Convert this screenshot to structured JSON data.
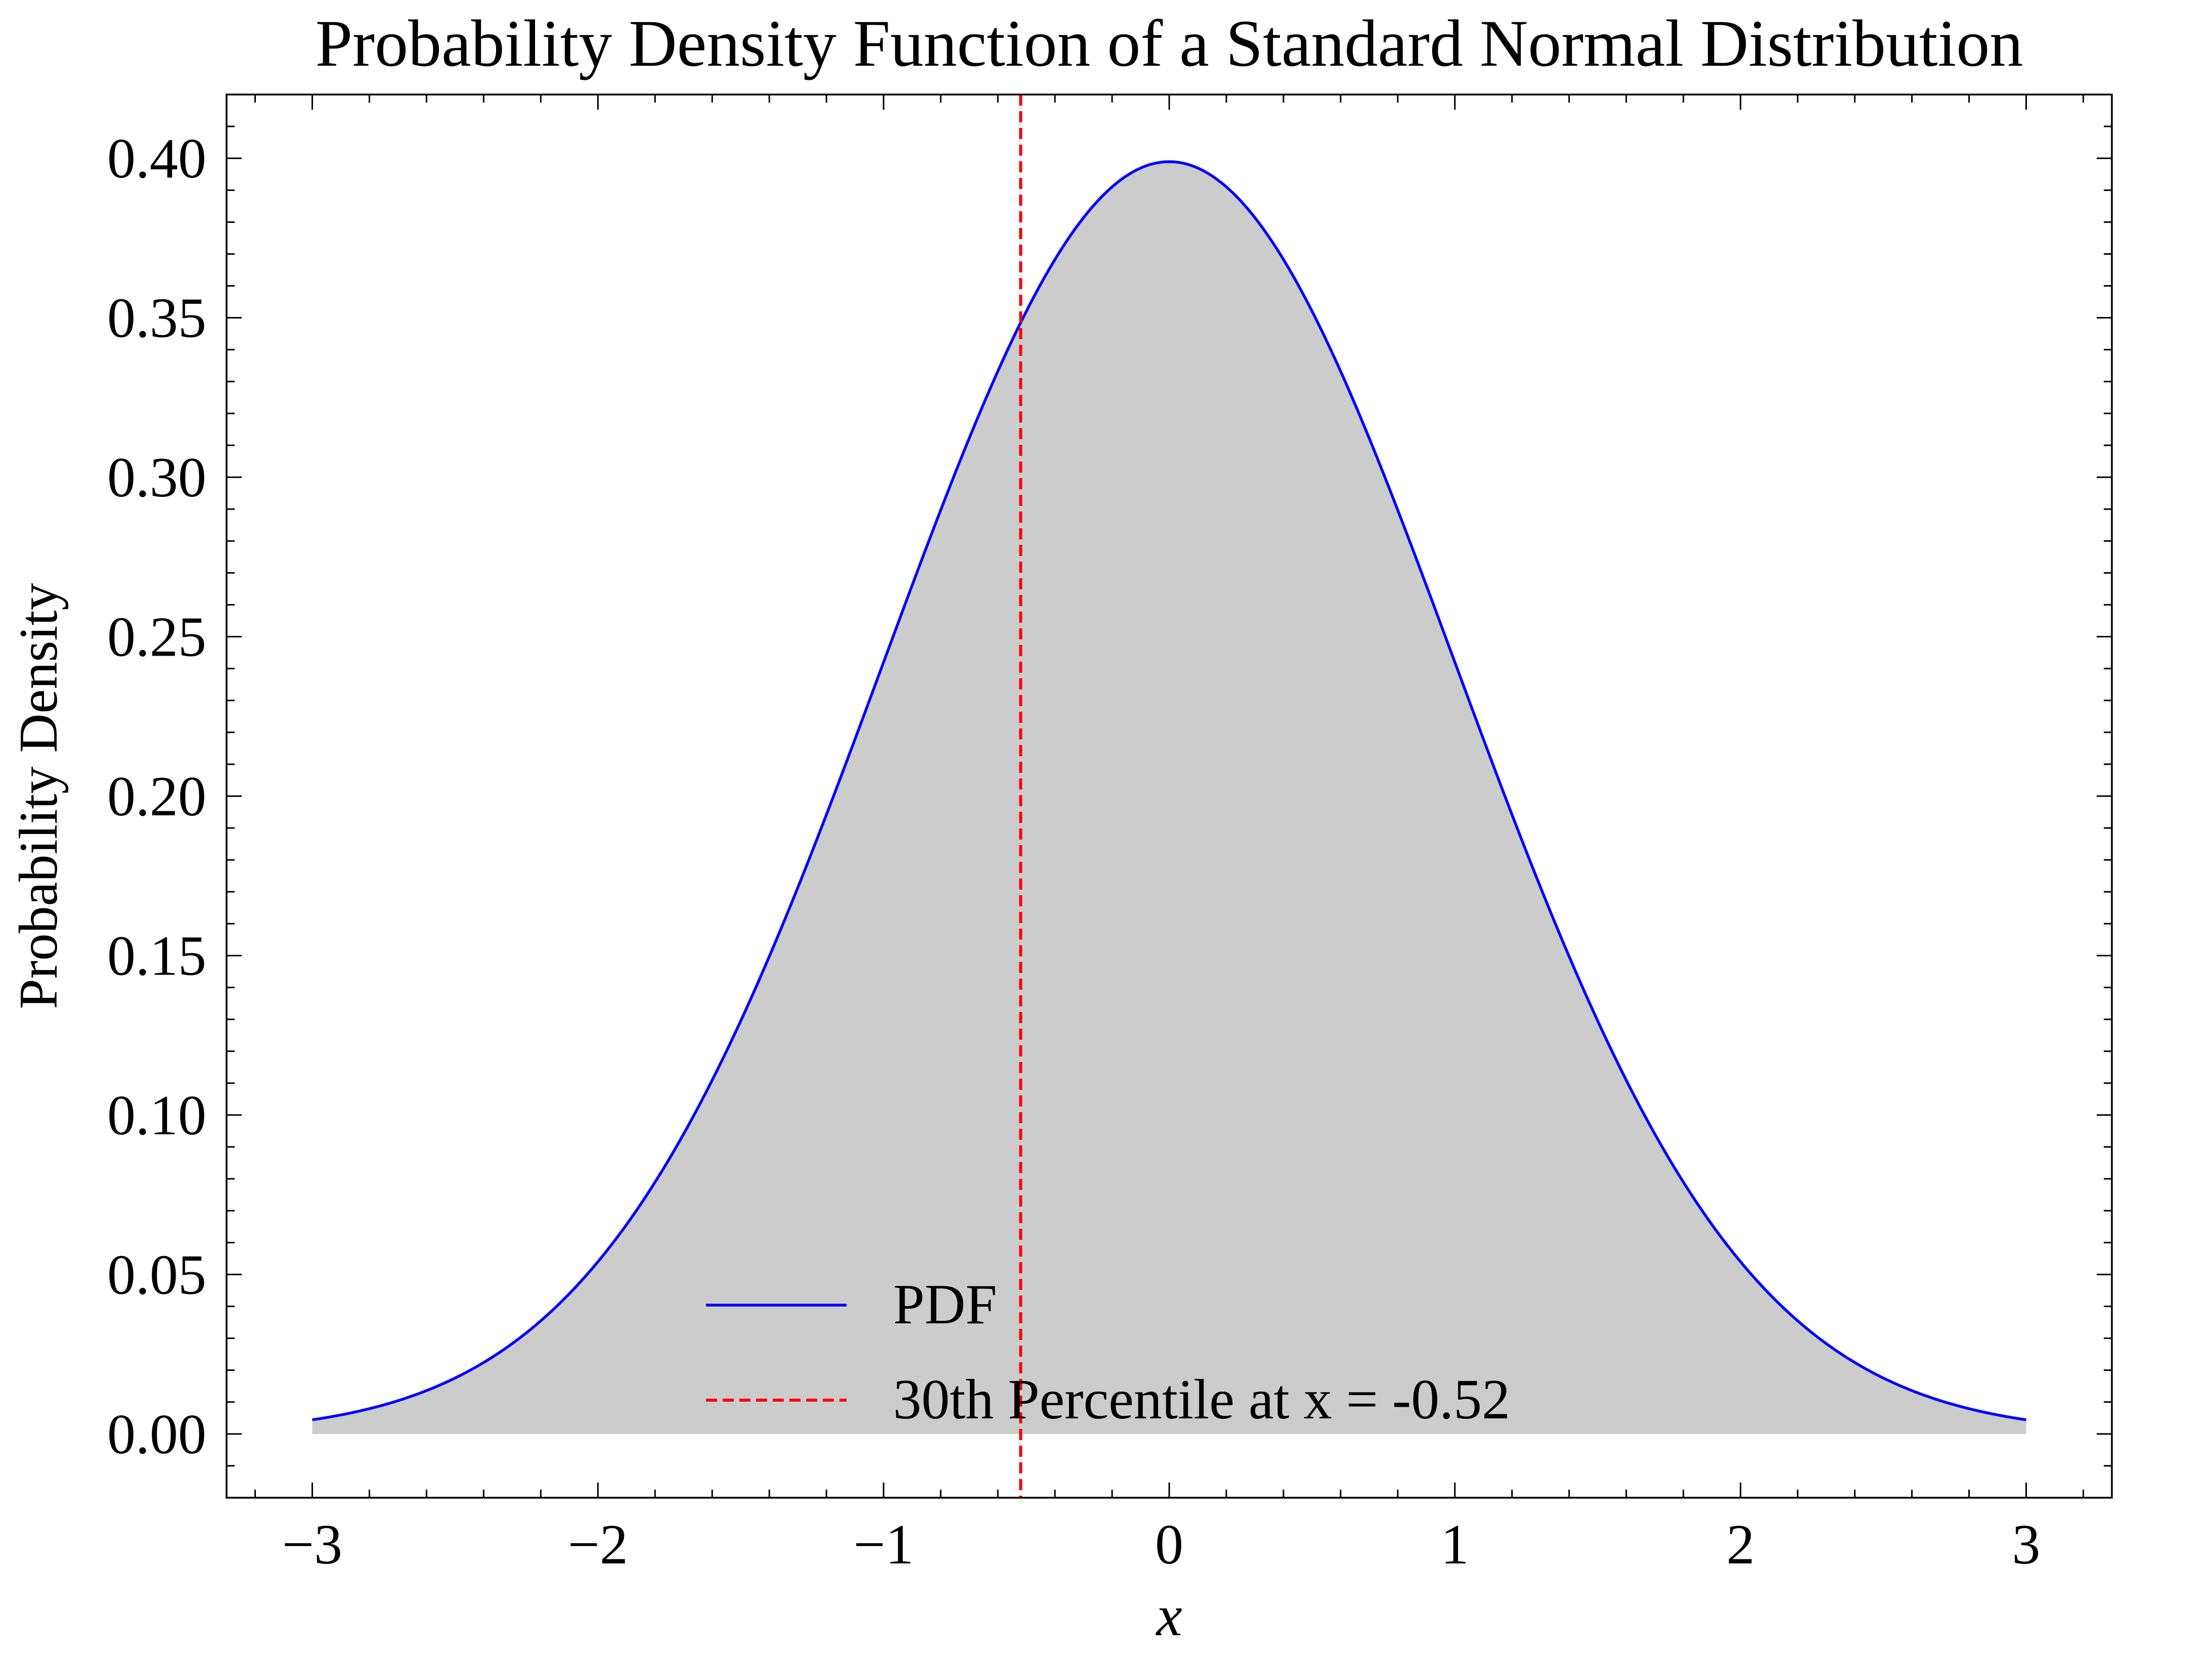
{
  "chart_data": {
    "type": "line",
    "title": "Probability Density Function of a Standard Normal Distribution",
    "xlabel": "x",
    "ylabel": "Probability Density",
    "xlim": [
      -3.3,
      3.3
    ],
    "ylim": [
      -0.02,
      0.42
    ],
    "x_ticks": [
      -3,
      -2,
      -1,
      0,
      1,
      2,
      3
    ],
    "x_tick_labels": [
      "−3",
      "−2",
      "−1",
      "0",
      "1",
      "2",
      "3"
    ],
    "y_ticks": [
      0.0,
      0.05,
      0.1,
      0.15,
      0.2,
      0.25,
      0.3,
      0.35,
      0.4
    ],
    "y_tick_labels": [
      "0.00",
      "0.05",
      "0.10",
      "0.15",
      "0.20",
      "0.25",
      "0.30",
      "0.35",
      "0.40"
    ],
    "grid": false,
    "legend_position": "lower-center",
    "series": [
      {
        "name": "PDF",
        "color": "#0000ff",
        "style": "solid",
        "fill_under": true,
        "fill_color": "#cccccc",
        "x": [
          -3.0,
          -2.75,
          -2.5,
          -2.25,
          -2.0,
          -1.75,
          -1.5,
          -1.25,
          -1.0,
          -0.75,
          -0.5,
          -0.25,
          0.0,
          0.25,
          0.5,
          0.75,
          1.0,
          1.25,
          1.5,
          1.75,
          2.0,
          2.25,
          2.5,
          2.75,
          3.0
        ],
        "y": [
          0.0044,
          0.0091,
          0.0175,
          0.0317,
          0.054,
          0.0863,
          0.1295,
          0.1826,
          0.242,
          0.3011,
          0.3521,
          0.3867,
          0.3989,
          0.3867,
          0.3521,
          0.3011,
          0.242,
          0.1826,
          0.1295,
          0.0863,
          0.054,
          0.0317,
          0.0175,
          0.0091,
          0.0044
        ]
      }
    ],
    "reference_lines": [
      {
        "name": "30th Percentile at x = -0.52",
        "orientation": "vertical",
        "x": -0.52,
        "color": "#ff0000",
        "style": "dashed"
      }
    ]
  }
}
